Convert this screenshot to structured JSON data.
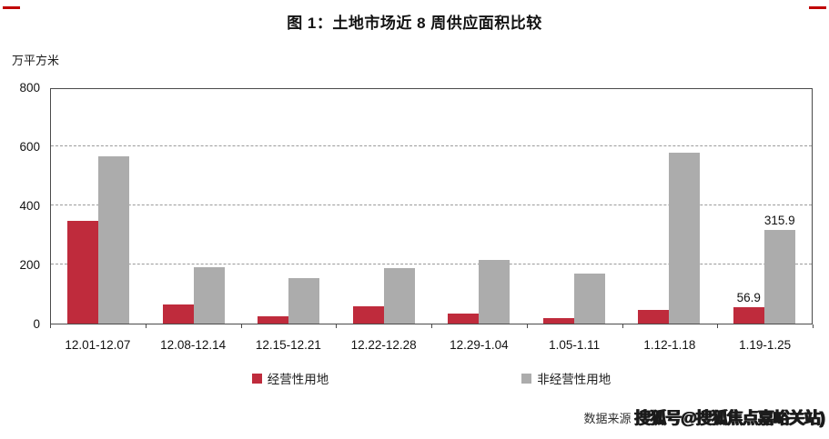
{
  "title": "图 1：土地市场近 8 周供应面积比较",
  "y_axis_unit": "万平方米",
  "corner_marks": {
    "color": "#c00000"
  },
  "colors": {
    "series1": "#bf2b3c",
    "series2": "#acacac",
    "axis": "#4a4a4a",
    "gridline": "#9b9b9b"
  },
  "chart_data": {
    "type": "bar",
    "title": "图 1：土地市场近 8 周供应面积比较",
    "xlabel": "",
    "ylabel": "万平方米",
    "ylim": [
      0,
      800
    ],
    "yticks": [
      0,
      200,
      400,
      600,
      800
    ],
    "grid": "horizontal-dashed",
    "legend_position": "bottom",
    "categories": [
      "12.01-12.07",
      "12.08-12.14",
      "12.15-12.21",
      "12.22-12.28",
      "12.29-1.04",
      "1.05-1.11",
      "1.12-1.18",
      "1.19-1.25"
    ],
    "series": [
      {
        "name": "经营性用地",
        "color": "#bf2b3c",
        "values": [
          348,
          65,
          25,
          60,
          35,
          20,
          45,
          56.9
        ]
      },
      {
        "name": "非经营性用地",
        "color": "#acacac",
        "values": [
          565,
          190,
          155,
          188,
          215,
          170,
          580,
          315.9
        ]
      }
    ],
    "data_labels": [
      {
        "series": 0,
        "category_index": 7,
        "text": "56.9"
      },
      {
        "series": 1,
        "category_index": 7,
        "text": "315.9"
      }
    ]
  },
  "footer": {
    "source_label": "数据来源",
    "watermark": "搜狐号@搜狐焦点嘉峪关站)"
  }
}
